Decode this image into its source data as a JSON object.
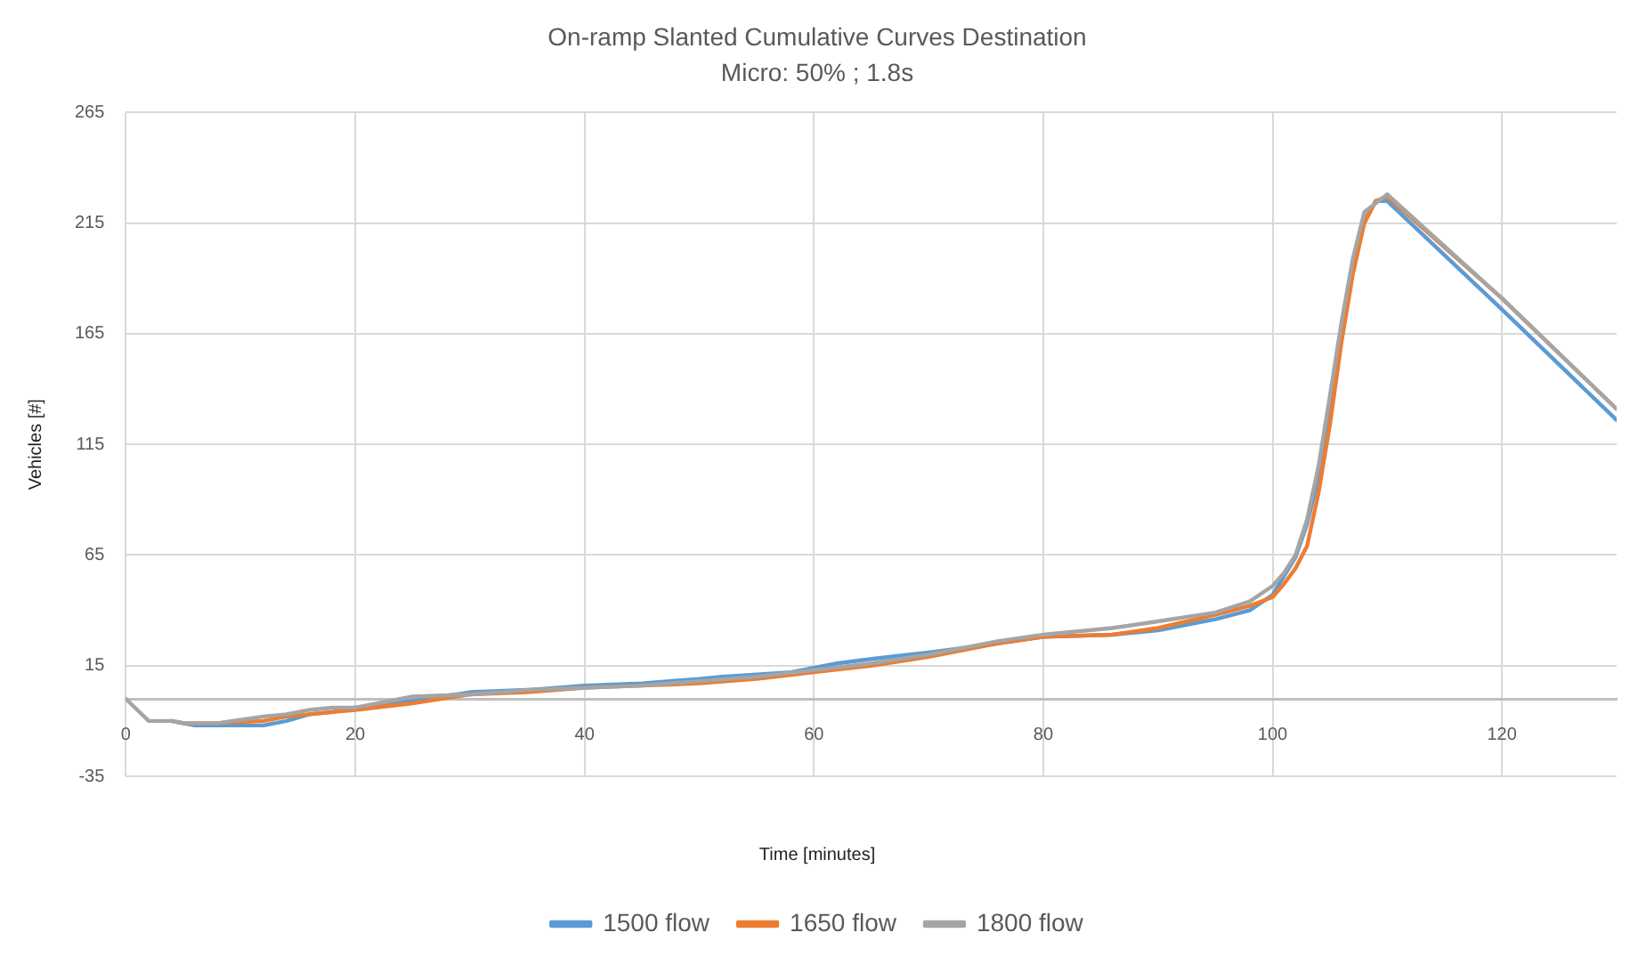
{
  "chart_data": {
    "type": "line",
    "title": "On-ramp Slanted Cumulative Curves Destination",
    "subtitle": "Micro: 50% ; 1.8s",
    "xlabel": "Time [minutes]",
    "ylabel": "Vehicles [#]",
    "xlim": [
      0,
      130
    ],
    "xticks": [
      0,
      20,
      40,
      60,
      80,
      100,
      120
    ],
    "ylim": [
      -35,
      265
    ],
    "yticks": [
      -35,
      15,
      65,
      115,
      165,
      215,
      265
    ],
    "grid": true,
    "legend": "bottom",
    "marker": "none",
    "line_style": "solid",
    "series": [
      {
        "name": "1500 flow",
        "color": "#5b9bd5",
        "x": [
          4,
          6,
          9,
          12,
          14,
          16,
          18,
          20,
          25,
          30,
          35,
          40,
          45,
          50,
          52,
          55,
          58,
          60,
          62,
          65,
          70,
          76,
          80,
          86,
          90,
          95,
          98,
          100,
          102,
          103,
          104,
          105,
          106,
          107,
          108,
          109,
          110,
          120,
          130
        ],
        "values": [
          -10,
          -12,
          -12,
          -12,
          -10,
          -7,
          -6,
          -4,
          -1,
          3,
          4,
          6,
          7,
          9,
          10,
          11,
          12,
          14,
          16,
          18,
          21,
          25,
          28,
          29,
          31,
          36,
          40,
          47,
          64,
          79,
          100,
          129,
          163,
          195,
          216,
          225,
          225,
          176,
          126
        ]
      },
      {
        "name": "1650 flow",
        "color": "#ed7d31",
        "x": [
          4,
          5,
          8,
          12,
          14,
          16,
          18,
          20,
          25,
          30,
          35,
          40,
          45,
          50,
          55,
          60,
          65,
          70,
          76,
          80,
          86,
          90,
          95,
          98,
          100,
          101,
          102,
          103,
          104,
          105,
          106,
          107,
          108,
          109,
          110,
          120,
          130
        ],
        "values": [
          -10,
          -11,
          -11,
          -10,
          -8,
          -7,
          -6,
          -5,
          -2,
          2,
          3,
          5,
          6,
          7,
          9,
          12,
          15,
          19,
          25,
          28,
          29,
          32,
          38,
          42,
          46,
          52,
          59,
          69,
          93,
          124,
          161,
          192,
          215,
          225,
          227,
          181,
          131
        ]
      },
      {
        "name": "1800 flow",
        "color": "#a5a5a5",
        "x": [
          0,
          2,
          4,
          5,
          8,
          12,
          14,
          16,
          18,
          20,
          25,
          30,
          35,
          40,
          45,
          50,
          55,
          60,
          65,
          70,
          76,
          80,
          86,
          90,
          95,
          98,
          100,
          101,
          102,
          103,
          104,
          105,
          106,
          107,
          108,
          110,
          120,
          130
        ],
        "values": [
          0,
          -10,
          -10,
          -11,
          -11,
          -8,
          -7,
          -5,
          -4,
          -4,
          1,
          2,
          4,
          5,
          6,
          8,
          10,
          13,
          16,
          20,
          26,
          29,
          32,
          35,
          39,
          44,
          51,
          57,
          65,
          81,
          105,
          137,
          170,
          199,
          220,
          228,
          181,
          131
        ]
      }
    ]
  }
}
